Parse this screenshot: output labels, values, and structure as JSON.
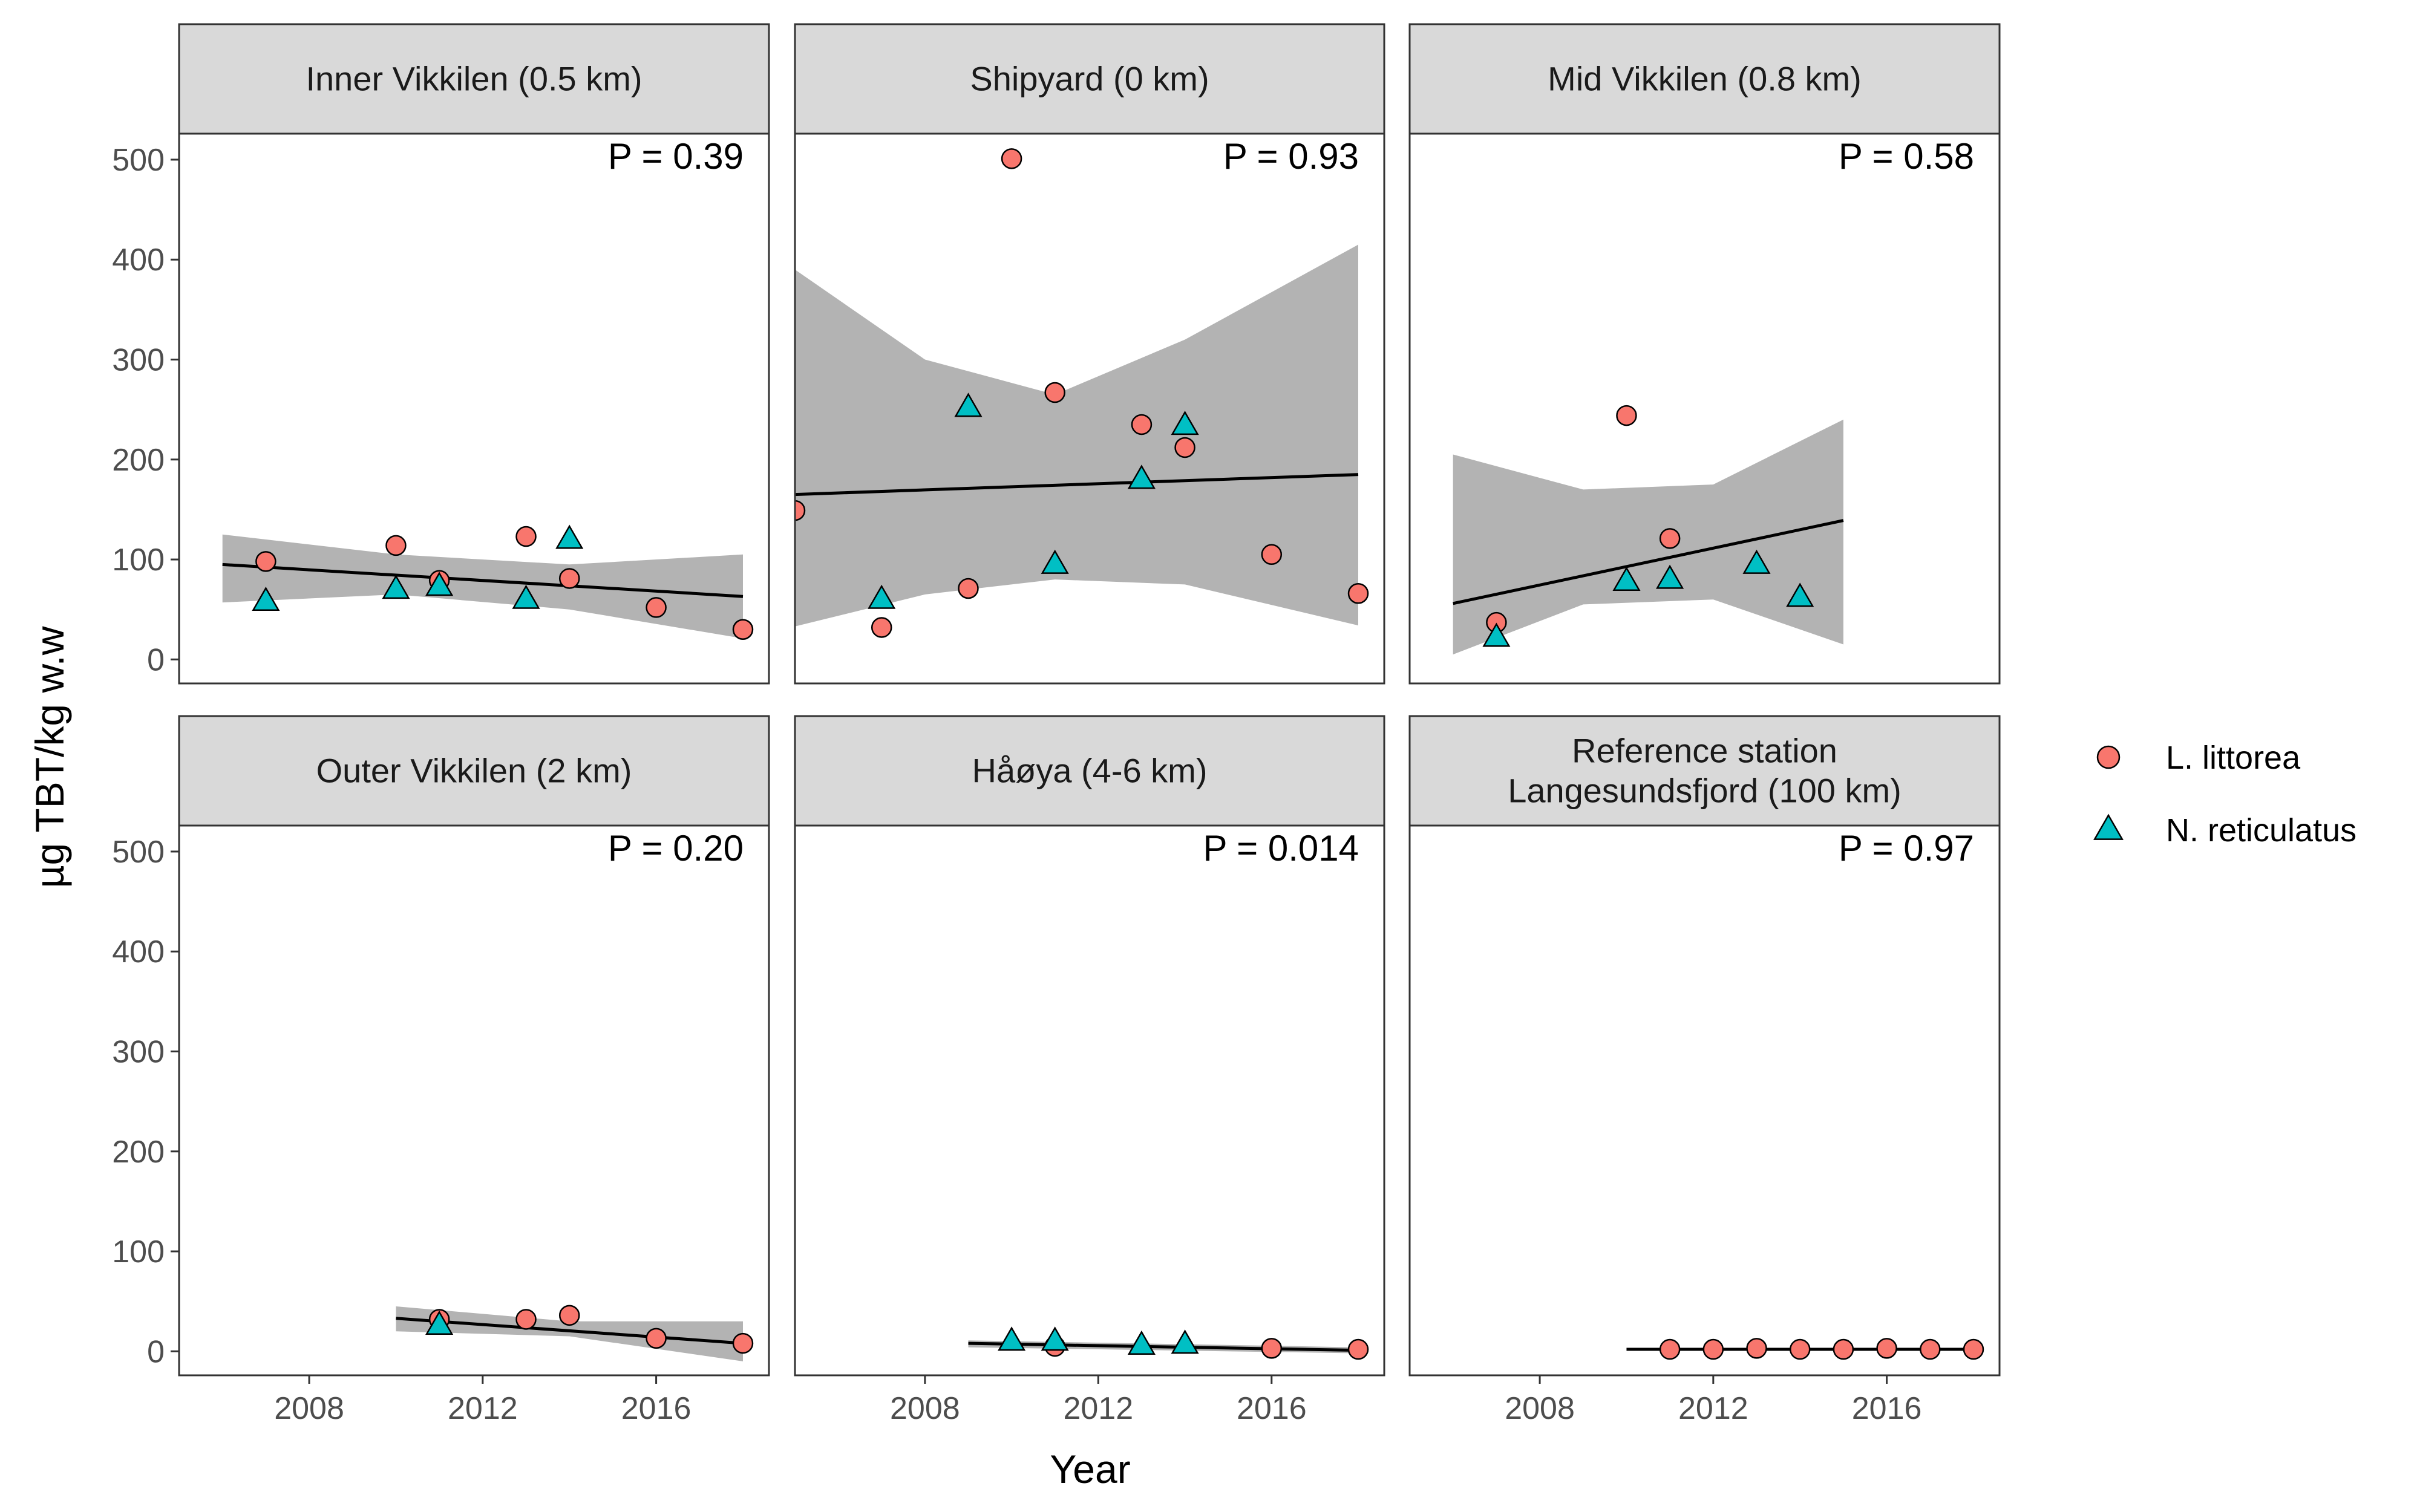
{
  "chart_data": {
    "type": "scatter",
    "xlabel": "Year",
    "ylabel": "µg TBT/kg w.w",
    "xlim": [
      2005,
      2018.6
    ],
    "ylim": [
      -24,
      526
    ],
    "x_ticks": [
      2008,
      2012,
      2016
    ],
    "y_ticks": [
      0,
      100,
      200,
      300,
      400,
      500
    ],
    "grid": false,
    "legend_position": "right",
    "series_styles": [
      {
        "name": "L. littorea",
        "marker": "circle",
        "color": "#F8766D"
      },
      {
        "name": "N. reticulatus",
        "marker": "triangle",
        "color": "#00BFC4"
      }
    ],
    "panels": [
      {
        "title": "Inner Vikkilen (0.5 km)",
        "p_label": "P = 0.39",
        "series": [
          {
            "name": "L. littorea",
            "points": [
              [
                2007,
                98
              ],
              [
                2010,
                114
              ],
              [
                2011,
                79
              ],
              [
                2013,
                123
              ],
              [
                2014,
                81
              ],
              [
                2016,
                52
              ],
              [
                2018,
                30
              ]
            ]
          },
          {
            "name": "N. reticulatus",
            "points": [
              [
                2007,
                58
              ],
              [
                2010,
                70
              ],
              [
                2011,
                73
              ],
              [
                2013,
                60
              ],
              [
                2014,
                120
              ]
            ]
          }
        ],
        "trend": [
          [
            2006,
            95
          ],
          [
            2018,
            63
          ]
        ],
        "ci_lower": [
          [
            2006,
            57
          ],
          [
            2010,
            65
          ],
          [
            2014,
            50
          ],
          [
            2018,
            21
          ]
        ],
        "ci_upper": [
          [
            2006,
            125
          ],
          [
            2010,
            105
          ],
          [
            2014,
            95
          ],
          [
            2018,
            105
          ]
        ]
      },
      {
        "title": "Shipyard (0 km)",
        "p_label": "P = 0.93",
        "series": [
          {
            "name": "L. littorea",
            "points": [
              [
                2005,
                149
              ],
              [
                2007,
                32
              ],
              [
                2009,
                71
              ],
              [
                2010,
                501
              ],
              [
                2011,
                267
              ],
              [
                2013,
                235
              ],
              [
                2014,
                212
              ],
              [
                2016,
                105
              ],
              [
                2018,
                66
              ]
            ]
          },
          {
            "name": "N. reticulatus",
            "points": [
              [
                2007,
                60
              ],
              [
                2009,
                252
              ],
              [
                2011,
                95
              ],
              [
                2013,
                180
              ],
              [
                2014,
                234
              ]
            ]
          }
        ],
        "trend": [
          [
            2005,
            165
          ],
          [
            2018,
            185
          ]
        ],
        "ci_lower": [
          [
            2005,
            33
          ],
          [
            2008,
            65
          ],
          [
            2011,
            80
          ],
          [
            2014,
            75
          ],
          [
            2018,
            34
          ]
        ],
        "ci_upper": [
          [
            2005,
            390
          ],
          [
            2008,
            300
          ],
          [
            2011,
            265
          ],
          [
            2014,
            320
          ],
          [
            2018,
            415
          ]
        ]
      },
      {
        "title": "Mid Vikkilen (0.8 km)",
        "p_label": "P = 0.58",
        "series": [
          {
            "name": "L. littorea",
            "points": [
              [
                2007,
                37
              ],
              [
                2010,
                244
              ],
              [
                2011,
                121
              ]
            ]
          },
          {
            "name": "N. reticulatus",
            "points": [
              [
                2007,
                22
              ],
              [
                2010,
                78
              ],
              [
                2011,
                80
              ],
              [
                2013,
                95
              ],
              [
                2014,
                62
              ]
            ]
          }
        ],
        "trend": [
          [
            2006,
            56
          ],
          [
            2015,
            139
          ]
        ],
        "ci_lower": [
          [
            2006,
            5
          ],
          [
            2009,
            55
          ],
          [
            2012,
            60
          ],
          [
            2015,
            15
          ]
        ],
        "ci_upper": [
          [
            2006,
            205
          ],
          [
            2009,
            170
          ],
          [
            2012,
            175
          ],
          [
            2015,
            240
          ]
        ]
      },
      {
        "title": "Outer Vikkilen (2 km)",
        "p_label": "P = 0.20",
        "series": [
          {
            "name": "L. littorea",
            "points": [
              [
                2011,
                32
              ],
              [
                2013,
                32
              ],
              [
                2014,
                36
              ],
              [
                2016,
                13
              ],
              [
                2018,
                8
              ]
            ]
          },
          {
            "name": "N. reticulatus",
            "points": [
              [
                2011,
                26
              ]
            ]
          }
        ],
        "trend": [
          [
            2010,
            33
          ],
          [
            2018,
            8
          ]
        ],
        "ci_lower": [
          [
            2010,
            20
          ],
          [
            2014,
            15
          ],
          [
            2018,
            -10
          ]
        ],
        "ci_upper": [
          [
            2010,
            45
          ],
          [
            2014,
            30
          ],
          [
            2018,
            30
          ]
        ]
      },
      {
        "title": "Håøya (4-6 km)",
        "p_label": "P = 0.014",
        "series": [
          {
            "name": "L. littorea",
            "points": [
              [
                2011,
                5
              ],
              [
                2016,
                3
              ],
              [
                2018,
                2
              ]
            ]
          },
          {
            "name": "N. reticulatus",
            "points": [
              [
                2010,
                10
              ],
              [
                2011,
                10
              ],
              [
                2013,
                6
              ],
              [
                2014,
                7
              ]
            ]
          }
        ],
        "trend": [
          [
            2009,
            8
          ],
          [
            2018,
            1
          ]
        ],
        "ci_lower": [
          [
            2009,
            4
          ],
          [
            2018,
            -2
          ]
        ],
        "ci_upper": [
          [
            2009,
            11
          ],
          [
            2018,
            4
          ]
        ]
      },
      {
        "title": "Reference station\nLangesundsfjord (100 km)",
        "p_label": "P = 0.97",
        "series": [
          {
            "name": "L. littorea",
            "points": [
              [
                2011,
                2
              ],
              [
                2012,
                2
              ],
              [
                2013,
                3
              ],
              [
                2014,
                2
              ],
              [
                2015,
                2
              ],
              [
                2016,
                3
              ],
              [
                2017,
                2
              ],
              [
                2018,
                2
              ]
            ]
          },
          {
            "name": "N. reticulatus",
            "points": []
          }
        ],
        "trend": [
          [
            2010,
            2
          ],
          [
            2018,
            2
          ]
        ],
        "ci_lower": [],
        "ci_upper": []
      }
    ]
  }
}
